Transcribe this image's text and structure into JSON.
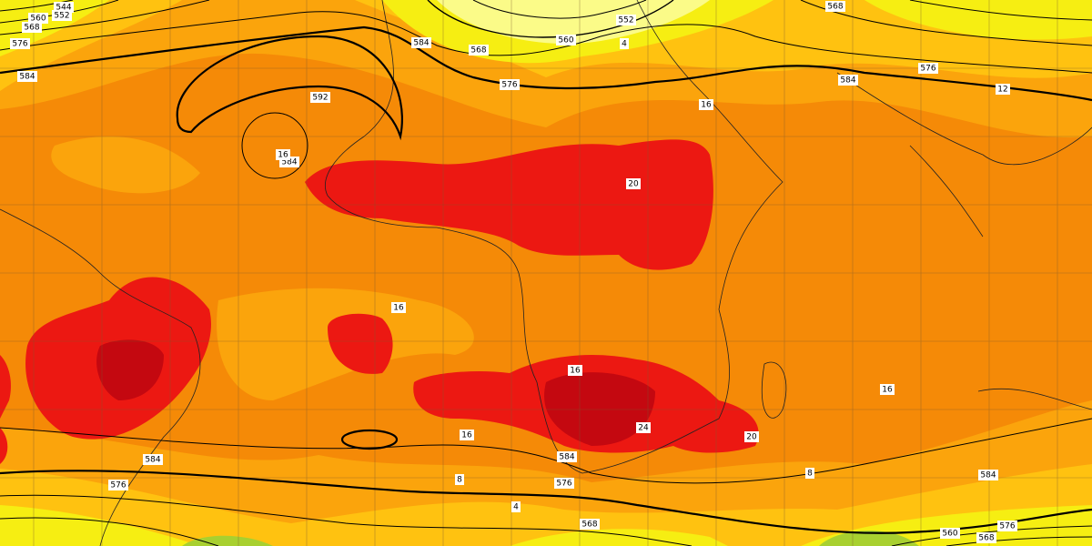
{
  "contour_labels": [
    "544",
    "552",
    "560",
    "568",
    "576",
    "584",
    "584",
    "592",
    "584",
    "16",
    "568",
    "576",
    "560",
    "552",
    "584",
    "576",
    "568",
    "12",
    "16",
    "20",
    "16",
    "16",
    "16",
    "24",
    "20",
    "16",
    "584",
    "576",
    "584",
    "576",
    "568",
    "584",
    "576",
    "568",
    "560",
    "8",
    "4",
    "4",
    "8"
  ]
}
